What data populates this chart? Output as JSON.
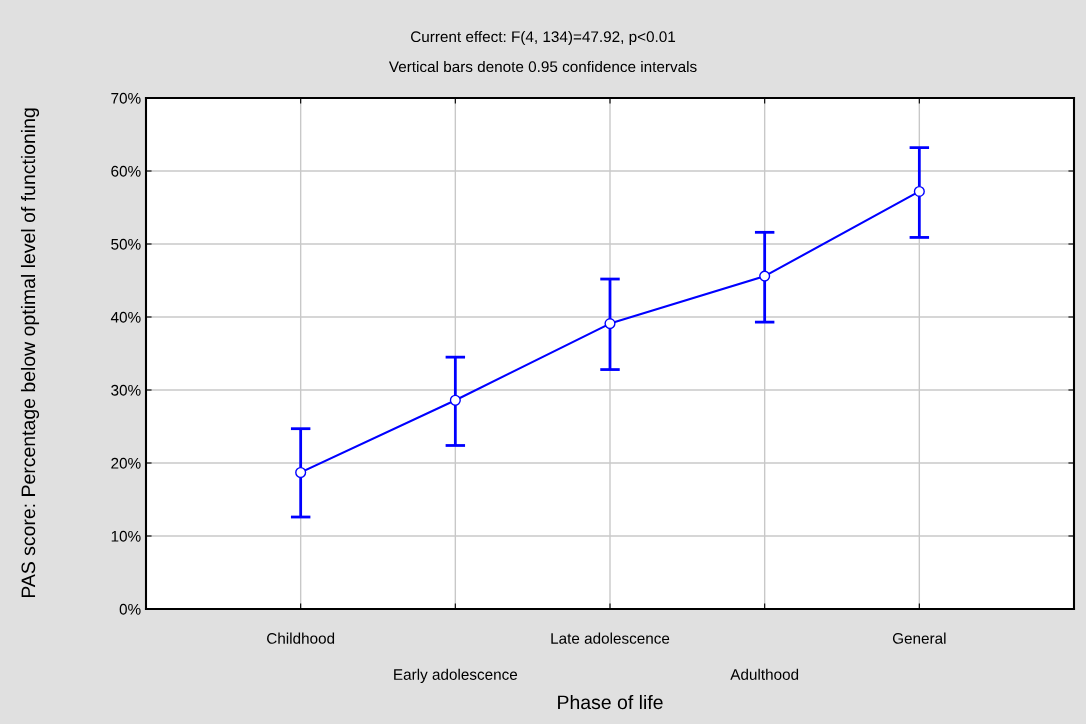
{
  "chart_data": {
    "type": "line",
    "title": "Current effect: F(4, 134)=47.92, p<0.01",
    "subtitle": "Vertical bars denote 0.95 confidence intervals",
    "xlabel": "Phase of life",
    "ylabel": "PAS score: Percentage below optimal level of functioning",
    "categories": [
      "Childhood",
      "Early adolescence",
      "Late adolescence",
      "Adulthood",
      "General"
    ],
    "values": [
      18.7,
      28.6,
      39.1,
      45.6,
      57.2
    ],
    "errors": [
      [
        12.6,
        24.7
      ],
      [
        22.4,
        34.5
      ],
      [
        32.8,
        45.2
      ],
      [
        39.3,
        51.6
      ],
      [
        50.9,
        63.2
      ]
    ],
    "color": "#0000ff",
    "marker": "circle",
    "line_style": "solid",
    "grid": true,
    "ylim": [
      0,
      70
    ],
    "yticks": [
      {
        "value": 0,
        "label": "0%"
      },
      {
        "value": 10,
        "label": "10%"
      },
      {
        "value": 20,
        "label": "20%"
      },
      {
        "value": 30,
        "label": "30%"
      },
      {
        "value": 40,
        "label": "40%"
      },
      {
        "value": 50,
        "label": "50%"
      },
      {
        "value": 60,
        "label": "60%"
      },
      {
        "value": 70,
        "label": "70%"
      }
    ]
  }
}
